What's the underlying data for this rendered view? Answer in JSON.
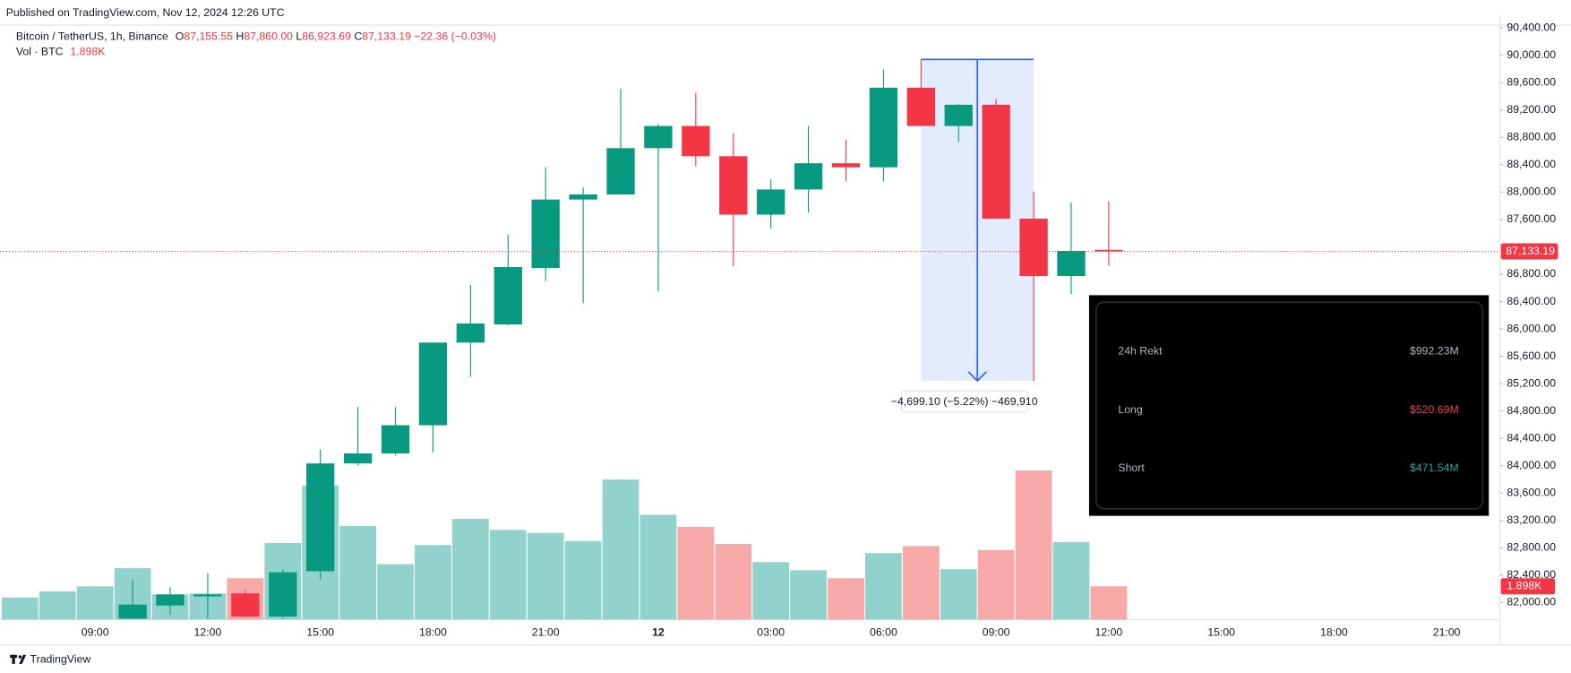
{
  "chart_data": {
    "type": "candlestick",
    "publisher": "Published on TradingView.com, Nov 12, 2024 12:26 UTC",
    "symbol": "Bitcoin / TetherUS, 1h, Binance",
    "ohlc": [
      {
        "key": "O",
        "value": 87155.55,
        "label": "87,155.55"
      },
      {
        "key": "H",
        "value": 87860.0,
        "label": "87,860.00"
      },
      {
        "key": "L",
        "value": 86923.69,
        "label": "86,923.69"
      },
      {
        "key": "C",
        "value": 87133.19,
        "label": "87,133.19"
      }
    ],
    "change": "−22.36 (−0.03%)",
    "volume_title": "Vol · BTC",
    "volume_last": {
      "value": 1898,
      "label": "1.898K"
    },
    "brand": "TradingView",
    "up_color": "#089981",
    "down_color": "#f23645",
    "up_volume_color": "#92d2cc",
    "down_volume_color": "#f7a9a7",
    "categories": [
      null,
      null,
      "09:00",
      null,
      null,
      "12:00",
      null,
      null,
      "15:00",
      null,
      null,
      "18:00",
      null,
      null,
      "21:00",
      null,
      null,
      "12",
      null,
      null,
      "03:00",
      null,
      null,
      "06:00",
      null,
      null,
      "09:00",
      null,
      null,
      "12:00",
      null,
      null,
      "15:00",
      null,
      null,
      "18:00",
      null,
      null,
      "21:00"
    ],
    "open": [
      null,
      null,
      null,
      81764,
      81956,
      82089,
      82133,
      81794,
      82457,
      84033,
      84180,
      84592,
      85800,
      86066,
      86890,
      87892,
      87966,
      88643,
      88967,
      88525,
      87671,
      88039,
      88422,
      88363,
      89527,
      88967,
      89277,
      87612,
      86773,
      87155.55,
      null,
      null,
      null,
      null,
      null,
      null,
      null,
      null,
      null
    ],
    "high": [
      null,
      null,
      null,
      82339,
      82221,
      82427,
      82191,
      82486,
      84239,
      84858,
      84858,
      85800,
      86640,
      87376,
      88364,
      88069,
      89512,
      88997,
      89453,
      88864,
      88186,
      88967,
      88761,
      89792,
      89940.29,
      89292,
      89365,
      88010,
      87848,
      87860,
      null,
      null,
      null,
      null,
      null,
      null,
      null,
      null,
      null
    ],
    "low": [
      null,
      null,
      null,
      81764,
      81823,
      81764,
      81779,
      81764,
      82339,
      84004,
      84151,
      84195,
      85300,
      86051,
      86699,
      86375,
      87966,
      86552,
      88378,
      86920,
      87465,
      87700,
      88157,
      88157,
      88967,
      88732,
      87612,
      85241.19,
      86508,
      86923.69,
      null,
      null,
      null,
      null,
      null,
      null,
      null,
      null,
      null
    ],
    "close": [
      null,
      null,
      null,
      81970,
      82118,
      82118,
      81794,
      82442,
      84033,
      84180,
      84592,
      85800,
      86080,
      86905,
      87892,
      87966,
      88643,
      88967,
      88525,
      87671,
      88039,
      88422,
      88363,
      89527,
      88967,
      89277,
      87612,
      86773,
      87141,
      87133.19,
      null,
      null,
      null,
      null,
      null,
      null,
      null,
      null,
      null
    ],
    "volume": [
      1265,
      1610,
      1898,
      2933,
      1438,
      1495,
      2358,
      4370,
      7648,
      5348,
      3163,
      4255,
      5750,
      5118,
      4945,
      4485,
      7993,
      5980,
      5290,
      4313,
      3278,
      2818,
      2358,
      3795,
      4198,
      2875,
      3968,
      8510,
      4428,
      1898,
      null,
      null,
      null,
      null,
      null,
      null,
      null,
      null,
      null
    ],
    "ylim": [
      81750,
      90588
    ],
    "volume_ylim": [
      0,
      34500
    ],
    "yticks": [
      {
        "value": 82000,
        "label": "82,000.00"
      },
      {
        "value": 82400,
        "label": "82,400.00"
      },
      {
        "value": 82800,
        "label": "82,800.00"
      },
      {
        "value": 83200,
        "label": "83,200.00"
      },
      {
        "value": 83600,
        "label": "83,600.00"
      },
      {
        "value": 84000,
        "label": "84,000.00"
      },
      {
        "value": 84400,
        "label": "84,400.00"
      },
      {
        "value": 84800,
        "label": "84,800.00"
      },
      {
        "value": 85200,
        "label": "85,200.00"
      },
      {
        "value": 85600,
        "label": "85,600.00"
      },
      {
        "value": 86000,
        "label": "86,000.00"
      },
      {
        "value": 86400,
        "label": "86,400.00"
      },
      {
        "value": 86800,
        "label": "86,800.00"
      },
      {
        "value": 87600,
        "label": "87,600.00"
      },
      {
        "value": 88000,
        "label": "88,000.00"
      },
      {
        "value": 88400,
        "label": "88,400.00"
      },
      {
        "value": 88800,
        "label": "88,800.00"
      },
      {
        "value": 89200,
        "label": "89,200.00"
      },
      {
        "value": 89600,
        "label": "89,600.00"
      },
      {
        "value": 90000,
        "label": "90,000.00"
      },
      {
        "value": 90400,
        "label": "90,400.00"
      }
    ],
    "measure": {
      "from": 24,
      "to": 27,
      "top": 89940.29,
      "bottom": 85241.19,
      "label": "−4,699.10 (−5.22%) −469,910"
    },
    "overlay": [
      {
        "label": "24h Rekt",
        "value": "$992.23M",
        "color": "#b2b5be"
      },
      {
        "label": "Long",
        "value": "$520.69M",
        "color": "#e8455a"
      },
      {
        "label": "Short",
        "value": "$471.54M",
        "color": "#26a69a"
      }
    ]
  }
}
